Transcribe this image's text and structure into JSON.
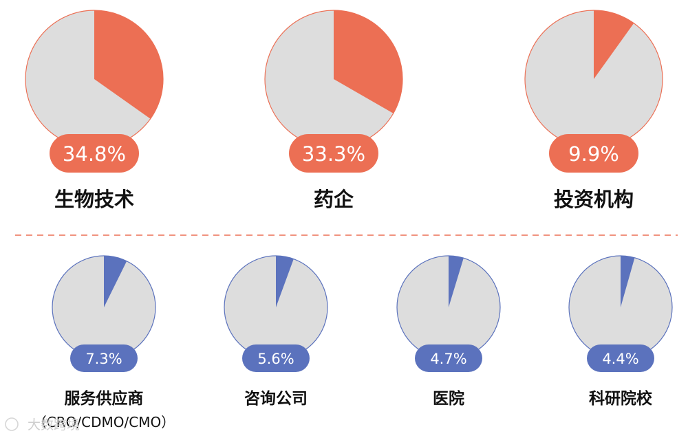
{
  "colors": {
    "top_accent": "#ec6f54",
    "bottom_accent": "#5b72bd",
    "pie_background": "#dddddd",
    "divider": "#ec6f54"
  },
  "chart_data": [
    {
      "type": "pie",
      "label": "生物技术",
      "value_label": "34.8%",
      "values": [
        34.8,
        65.2
      ],
      "row": "top"
    },
    {
      "type": "pie",
      "label": "药企",
      "value_label": "33.3%",
      "values": [
        33.3,
        66.7
      ],
      "row": "top"
    },
    {
      "type": "pie",
      "label": "投资机构",
      "value_label": "9.9%",
      "values": [
        9.9,
        90.1
      ],
      "row": "top"
    },
    {
      "type": "pie",
      "label": "服务供应商",
      "sublabel": "（CRO/CDMO/CMO）",
      "value_label": "7.3%",
      "values": [
        7.3,
        92.7
      ],
      "row": "bottom"
    },
    {
      "type": "pie",
      "label": "咨询公司",
      "value_label": "5.6%",
      "values": [
        5.6,
        94.4
      ],
      "row": "bottom"
    },
    {
      "type": "pie",
      "label": "医院",
      "value_label": "4.7%",
      "values": [
        4.7,
        95.3
      ],
      "row": "bottom"
    },
    {
      "type": "pie",
      "label": "科研院校",
      "value_label": "4.4%",
      "values": [
        4.4,
        95.6
      ],
      "row": "bottom"
    }
  ],
  "watermark": {
    "text": "大数跨境"
  }
}
